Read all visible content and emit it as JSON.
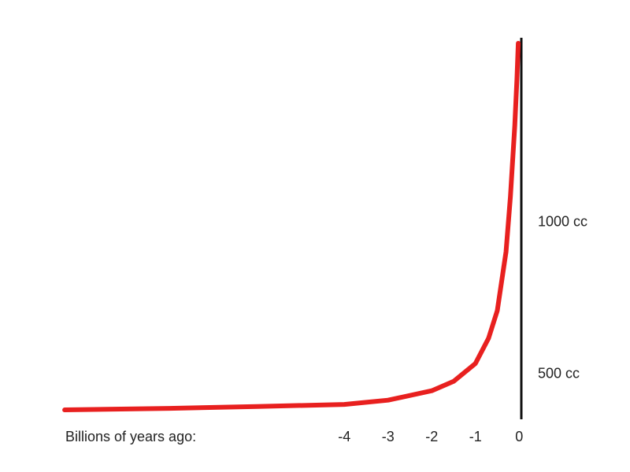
{
  "chart_data": {
    "type": "line",
    "x_label": "Billions of years ago:",
    "xlim": [
      -10.6,
      0.05
    ],
    "xticks": [
      -4,
      -3,
      -2,
      -1,
      0
    ],
    "ylim": [
      352,
      1609
    ],
    "yticks": [
      {
        "value": 500,
        "label": "500 cc"
      },
      {
        "value": 1000,
        "label": "1000 cc"
      }
    ],
    "grid": false,
    "series": [
      {
        "color": "#e8201f",
        "x": [
          -10.4,
          -8,
          -6,
          -4,
          -3,
          -2,
          -1.5,
          -1,
          -0.7,
          -0.5,
          -0.3,
          -0.2,
          -0.1,
          -0.05,
          -0.02
        ],
        "values": [
          383,
          388,
          394,
          401,
          415,
          446,
          477,
          536,
          619,
          710,
          904,
          1085,
          1319,
          1474,
          1591
        ]
      }
    ]
  }
}
